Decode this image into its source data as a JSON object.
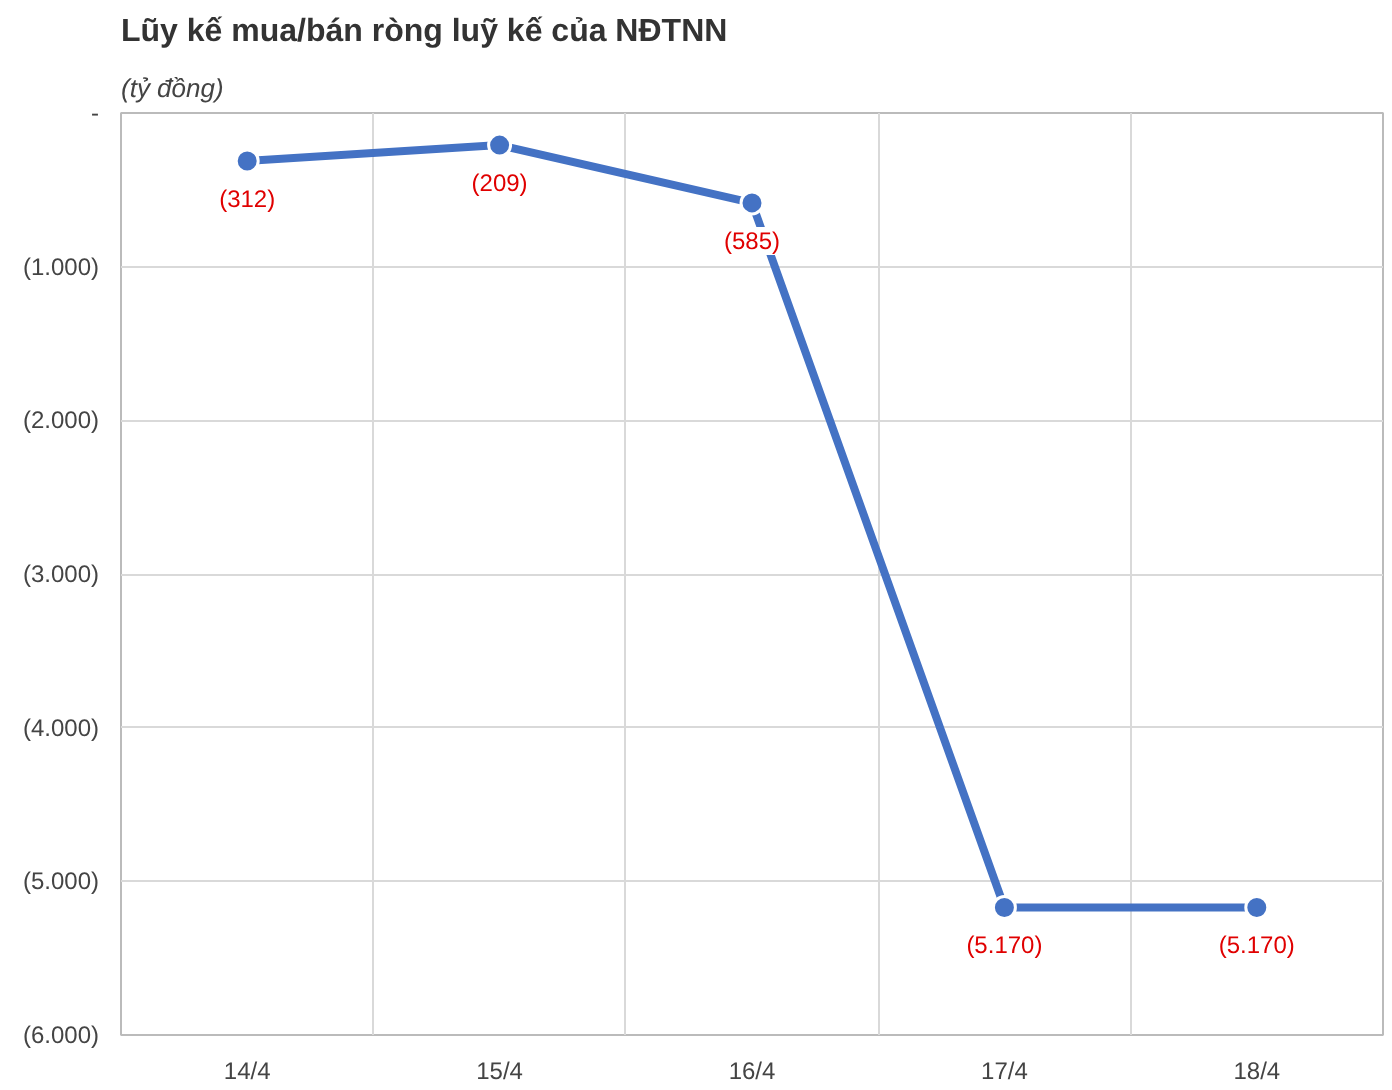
{
  "chart_data": {
    "type": "line",
    "title": "Lũy kế mua/bán ròng luỹ kế của NĐTNN",
    "subtitle": "(tỷ đồng)",
    "categories": [
      "14/4",
      "15/4",
      "16/4",
      "17/4",
      "18/4"
    ],
    "series": [
      {
        "color": "#4472c4",
        "values": [
          -312,
          -209,
          -585,
          -5170,
          -5170
        ],
        "value_labels": [
          "(312)",
          "(209)",
          "(585)",
          "(5.170)",
          "(5.170)"
        ]
      }
    ],
    "ylim": [
      -6000,
      0
    ],
    "yticks": [
      {
        "value": 0,
        "label": "-"
      },
      {
        "value": -1000,
        "label": "(1.000)"
      },
      {
        "value": -2000,
        "label": "(2.000)"
      },
      {
        "value": -3000,
        "label": "(3.000)"
      },
      {
        "value": -4000,
        "label": "(4.000)"
      },
      {
        "value": -5000,
        "label": "(5.000)"
      },
      {
        "value": -6000,
        "label": "(6.000)"
      }
    ],
    "grid": true,
    "marker": "circle",
    "line_style": "solid"
  }
}
